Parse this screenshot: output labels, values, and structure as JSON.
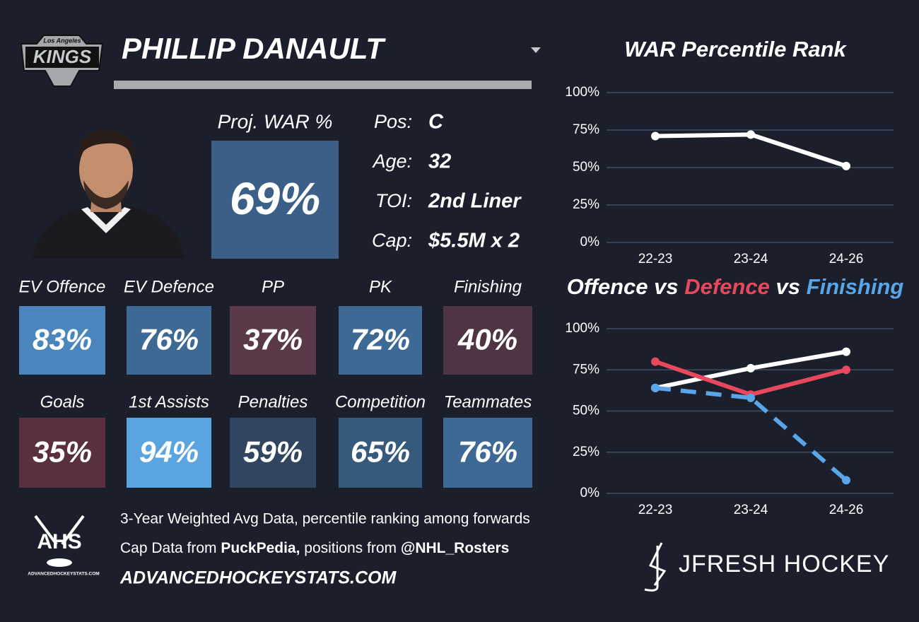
{
  "team_logo": {
    "top": "Los Angeles",
    "main": "KINGS"
  },
  "player_name": "PHILLIP DANAULT",
  "proj_war": {
    "label": "Proj. WAR %",
    "value": "69%",
    "color": "#3b5f86"
  },
  "bio": [
    {
      "label": "Pos:",
      "value": "C"
    },
    {
      "label": "Age:",
      "value": "32"
    },
    {
      "label": "TOI:",
      "value": "2nd Liner"
    },
    {
      "label": "Cap:",
      "value": "$5.5M x 2"
    }
  ],
  "tiles": [
    {
      "label": "EV Offence",
      "value": "83%",
      "color": "#4a86bd"
    },
    {
      "label": "EV Defence",
      "value": "76%",
      "color": "#3d6a95"
    },
    {
      "label": "PP",
      "value": "37%",
      "color": "#5a3a4a"
    },
    {
      "label": "PK",
      "value": "72%",
      "color": "#3d6a95"
    },
    {
      "label": "Finishing",
      "value": "40%",
      "color": "#4e3444"
    },
    {
      "label": "Goals",
      "value": "35%",
      "color": "#5a3040"
    },
    {
      "label": "1st Assists",
      "value": "94%",
      "color": "#5aa5e0"
    },
    {
      "label": "Penalties",
      "value": "59%",
      "color": "#2f4560"
    },
    {
      "label": "Competition",
      "value": "65%",
      "color": "#355a7c"
    },
    {
      "label": "Teammates",
      "value": "76%",
      "color": "#3d6a95"
    }
  ],
  "footer": {
    "ahs_logo": {
      "main": "AHS",
      "sub": "ADVANCEDHOCKEYSTATS.COM"
    },
    "line1": "3-Year Weighted Avg Data, percentile ranking among forwards",
    "line2": [
      "Cap Data from ",
      "PuckPedia,",
      " positions from ",
      "@NHL_Rosters"
    ],
    "site": "ADVANCEDHOCKEYSTATS.COM",
    "brand": "JFRESH HOCKEY"
  },
  "chart_data": [
    {
      "type": "line",
      "title": "WAR Percentile Rank",
      "categories": [
        "22-23",
        "23-24",
        "24-26"
      ],
      "series": [
        {
          "color": "#ffffff",
          "values": [
            71,
            72,
            51
          ]
        }
      ],
      "ylim": [
        0,
        100
      ],
      "yticks": [
        {
          "value": 0,
          "label": "0%"
        },
        {
          "value": 25,
          "label": "25%"
        },
        {
          "value": 50,
          "label": "50%"
        },
        {
          "value": 75,
          "label": "75%"
        },
        {
          "value": 100,
          "label": "100%"
        }
      ],
      "grid": true
    },
    {
      "type": "line",
      "title_joiner": "vs",
      "categories": [
        "22-23",
        "23-24",
        "24-26"
      ],
      "series": [
        {
          "name": "Offence",
          "color": "#ffffff",
          "values": [
            64,
            76,
            86
          ]
        },
        {
          "name": "Defence",
          "color": "#e8485c",
          "values": [
            80,
            60,
            75
          ]
        },
        {
          "name": "Finishing",
          "color": "#5aa5e8",
          "values": [
            64,
            58,
            8
          ],
          "line_style": "dashed"
        }
      ],
      "ylim": [
        0,
        100
      ],
      "yticks": [
        {
          "value": 0,
          "label": "0%"
        },
        {
          "value": 25,
          "label": "25%"
        },
        {
          "value": 50,
          "label": "50%"
        },
        {
          "value": 75,
          "label": "75%"
        },
        {
          "value": 100,
          "label": "100%"
        }
      ],
      "grid": true
    }
  ]
}
